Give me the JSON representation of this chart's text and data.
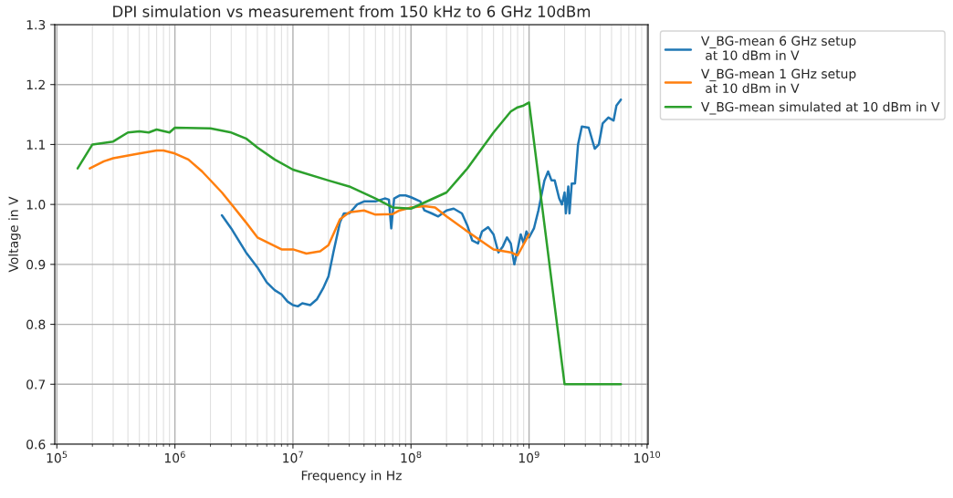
{
  "chart_data": {
    "type": "line",
    "title": "DPI simulation vs measurement from 150 kHz to 6 GHz 10dBm",
    "xlabel": "Frequency in Hz",
    "ylabel": "Voltage in V",
    "log": "x",
    "grid": true,
    "legend": "top right",
    "xlim": [
      96000,
      10200000000
    ],
    "ylim": [
      0.6,
      1.3
    ],
    "xticks": [
      {
        "value": 100000,
        "label": "10$^{5}$"
      },
      {
        "value": 1000000,
        "label": "10$^{6}$"
      },
      {
        "value": 10000000,
        "label": "10$^{7}$"
      },
      {
        "value": 100000000,
        "label": "10$^{8}$"
      },
      {
        "value": 1000000000,
        "label": "10$^{9}$"
      },
      {
        "value": 10000000000,
        "label": "10$^{10}$"
      }
    ],
    "yticks": [
      0.6,
      0.7,
      0.8,
      0.9,
      {
        "value": 1,
        "label": "1.0"
      },
      1.1,
      1.2,
      1.3
    ],
    "series": [
      {
        "name": "V_BG-mean 6 GHz setup\n at 10 dBm in V",
        "color": "#1f77b4",
        "x": [
          2500000.0,
          3000000.0,
          4000000.0,
          5000000.0,
          6000000.0,
          7000000.0,
          8000000.0,
          9000000.0,
          10000000.0,
          11000000.0,
          12000000.0,
          14000000.0,
          16000000.0,
          18000000.0,
          20000000.0,
          22000000.0,
          25000000.0,
          27000000.0,
          30000000.0,
          35000000.0,
          40000000.0,
          50000000.0,
          60000000.0,
          65000000.0,
          68000000.0,
          72000000.0,
          80000000.0,
          90000000.0,
          100000000.0,
          120000000.0,
          130000000.0,
          150000000.0,
          170000000.0,
          200000000.0,
          230000000.0,
          270000000.0,
          300000000.0,
          330000000.0,
          370000000.0,
          400000000.0,
          450000000.0,
          500000000.0,
          550000000.0,
          600000000.0,
          650000000.0,
          700000000.0,
          750000000.0,
          800000000.0,
          850000000.0,
          900000000.0,
          950000000.0,
          1000000000.0,
          1100000000.0,
          1200000000.0,
          1350000000.0,
          1450000000.0,
          1550000000.0,
          1650000000.0,
          1800000000.0,
          1900000000.0,
          2000000000.0,
          2050000000.0,
          2150000000.0,
          2200000000.0,
          2300000000.0,
          2450000000.0,
          2600000000.0,
          2800000000.0,
          3200000000.0,
          3600000000.0,
          3900000000.0,
          4200000000.0,
          4700000000.0,
          5200000000.0,
          5500000000.0,
          6000000000.0
        ],
        "values": [
          0.982,
          0.96,
          0.92,
          0.895,
          0.87,
          0.857,
          0.85,
          0.838,
          0.832,
          0.83,
          0.835,
          0.832,
          0.842,
          0.86,
          0.88,
          0.92,
          0.97,
          0.985,
          0.985,
          1.0,
          1.005,
          1.005,
          1.01,
          1.008,
          0.96,
          1.01,
          1.015,
          1.015,
          1.012,
          1.005,
          0.99,
          0.985,
          0.98,
          0.99,
          0.993,
          0.985,
          0.965,
          0.94,
          0.935,
          0.955,
          0.962,
          0.95,
          0.92,
          0.93,
          0.945,
          0.935,
          0.9,
          0.925,
          0.95,
          0.935,
          0.955,
          0.945,
          0.96,
          0.99,
          1.04,
          1.055,
          1.04,
          1.04,
          1.01,
          1.0,
          1.02,
          0.985,
          1.03,
          0.985,
          1.035,
          1.035,
          1.1,
          1.13,
          1.128,
          1.093,
          1.1,
          1.135,
          1.145,
          1.14,
          1.165,
          1.175
        ]
      },
      {
        "name": "V_BG-mean 1 GHz setup\n at 10 dBm in V",
        "color": "#ff7f0e",
        "x": [
          190000.0,
          250000.0,
          300000.0,
          500000.0,
          700000.0,
          800000.0,
          1000000.0,
          1300000.0,
          1700000.0,
          2500000.0,
          4000000.0,
          5000000.0,
          8000000.0,
          10000000.0,
          13000000.0,
          17000000.0,
          20000000.0,
          25000000.0,
          30000000.0,
          40000000.0,
          50000000.0,
          70000000.0,
          80000000.0,
          100000000.0,
          130000000.0,
          160000000.0,
          200000000.0,
          300000000.0,
          500000000.0,
          700000000.0,
          800000000.0,
          1000000000.0
        ],
        "values": [
          1.06,
          1.072,
          1.077,
          1.085,
          1.09,
          1.09,
          1.085,
          1.075,
          1.055,
          1.02,
          0.97,
          0.945,
          0.925,
          0.925,
          0.918,
          0.922,
          0.932,
          0.975,
          0.987,
          0.99,
          0.983,
          0.984,
          0.99,
          0.995,
          0.997,
          0.995,
          0.98,
          0.955,
          0.925,
          0.92,
          0.915,
          0.95
        ]
      },
      {
        "name": "V_BG-mean simulated at 10 dBm in V",
        "color": "#2ca02c",
        "x": [
          150000.0,
          200000.0,
          300000.0,
          400000.0,
          500000.0,
          600000.0,
          700000.0,
          900000.0,
          1000000.0,
          2000000.0,
          3000000.0,
          4000000.0,
          5000000.0,
          7000000.0,
          10000000.0,
          20000000.0,
          30000000.0,
          50000000.0,
          70000000.0,
          100000000.0,
          200000000.0,
          300000000.0,
          500000000.0,
          700000000.0,
          800000000.0,
          900000000.0,
          1000000000.0,
          2000000000.0,
          6000000000.0
        ],
        "values": [
          1.06,
          1.1,
          1.105,
          1.12,
          1.122,
          1.12,
          1.125,
          1.12,
          1.128,
          1.127,
          1.12,
          1.11,
          1.095,
          1.075,
          1.058,
          1.04,
          1.03,
          1.01,
          0.995,
          0.993,
          1.02,
          1.06,
          1.12,
          1.155,
          1.162,
          1.165,
          1.17,
          0.7,
          0.7
        ]
      }
    ]
  }
}
